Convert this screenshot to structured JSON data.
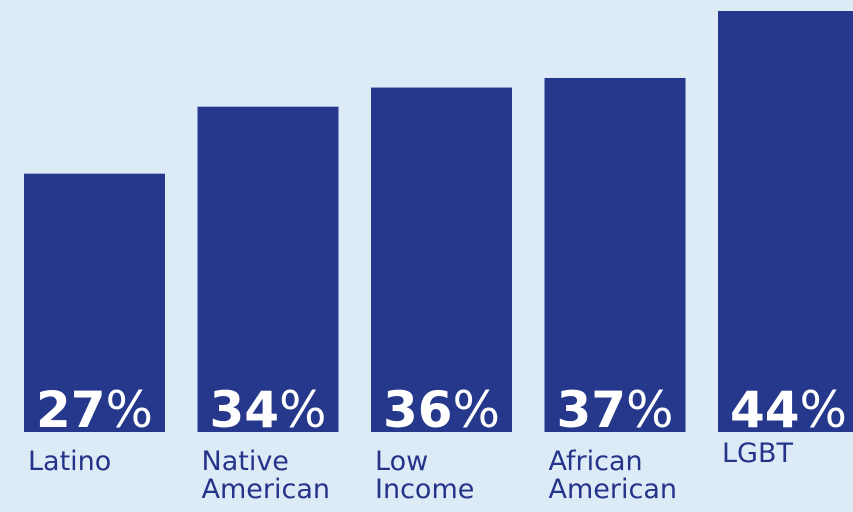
{
  "chart_data": {
    "type": "bar",
    "categories": [
      [
        "Latino"
      ],
      [
        "Native",
        "American"
      ],
      [
        "Low",
        "Income"
      ],
      [
        "African",
        "American"
      ],
      [
        "LGBT"
      ]
    ],
    "values": [
      27,
      34,
      36,
      37,
      44
    ],
    "value_labels": [
      "27%",
      "34%",
      "36%",
      "37%",
      "44%"
    ],
    "unit": "%",
    "ylim": [
      0,
      44
    ],
    "grid": false,
    "legend": "none",
    "colors": {
      "bar": "#25388c",
      "label": "#25338a",
      "value_text": "#ffffff",
      "background": "#dcebf6"
    }
  }
}
